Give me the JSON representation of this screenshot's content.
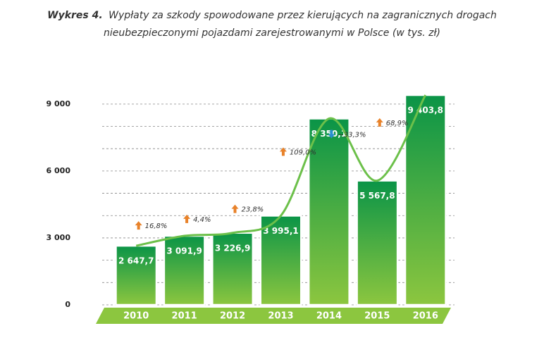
{
  "chart_data": {
    "type": "bar",
    "title_prefix": "Wykres 4.",
    "title_lines": [
      "Wypłaty za szkody spowodowane przez kierujących na zagranicznych drogach",
      "nieubezpieczonymi pojazdami zarejestrowanymi w Polsce (w tys. zł)"
    ],
    "categories": [
      "2010",
      "2011",
      "2012",
      "2013",
      "2014",
      "2015",
      "2016"
    ],
    "values": [
      2647.7,
      3091.9,
      3226.9,
      3995.1,
      8350.1,
      5567.8,
      9403.8
    ],
    "value_labels": [
      "2 647,7",
      "3 091,9",
      "3 226,9",
      "3 995,1",
      "8 350,1",
      "5 567,8",
      "9 403,8"
    ],
    "changes": {
      "values": [
        16.8,
        4.4,
        23.8,
        109.0,
        -33.3,
        68.9
      ],
      "value_labels": [
        "16,8%",
        "4,4%",
        "23,8%",
        "109,0%",
        "−33,3%",
        "68,9%"
      ]
    },
    "ylim": [
      0,
      9500
    ],
    "yticks": [
      {
        "value": 0,
        "label": "0"
      },
      {
        "value": 3000,
        "label": "3 000"
      },
      {
        "value": 6000,
        "label": "6 000"
      },
      {
        "value": 9000,
        "label": "9 000"
      }
    ],
    "minor_yticks": [
      1000,
      2000,
      4000,
      5000,
      7000,
      8000
    ],
    "grid": true,
    "color_top": "#0a9447",
    "color_bottom": "#8cc63f",
    "up_color": "#e8822a",
    "down_color": "#2a8fd0"
  }
}
